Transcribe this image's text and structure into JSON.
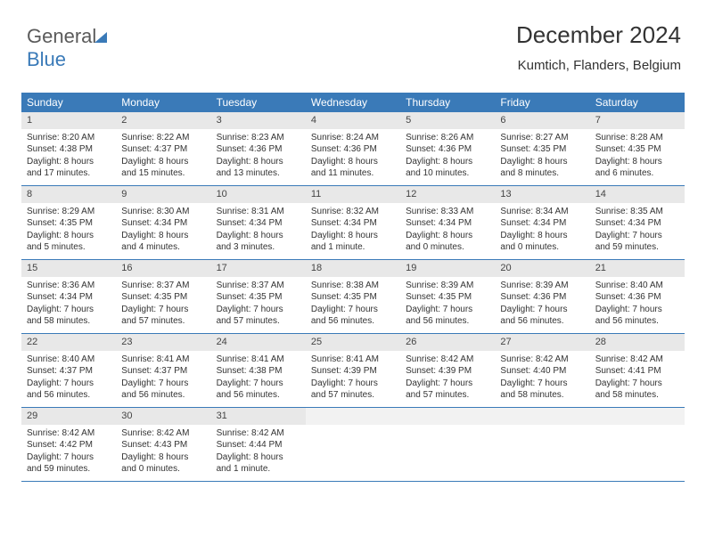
{
  "brand": {
    "part1": "General",
    "part2": "Blue"
  },
  "title": "December 2024",
  "location": "Kumtich, Flanders, Belgium",
  "colors": {
    "accent": "#3a7ab8",
    "header_bg": "#3a7ab8",
    "header_text": "#ffffff",
    "daynum_bg": "#e8e8e8",
    "empty_bg": "#f2f2f2",
    "text": "#333333",
    "rule": "#3a7ab8"
  },
  "typography": {
    "title_fontsize": 26,
    "location_fontsize": 15,
    "weekday_fontsize": 12,
    "body_fontsize": 10
  },
  "weekdays": [
    "Sunday",
    "Monday",
    "Tuesday",
    "Wednesday",
    "Thursday",
    "Friday",
    "Saturday"
  ],
  "weeks": [
    [
      {
        "n": "1",
        "sr": "Sunrise: 8:20 AM",
        "ss": "Sunset: 4:38 PM",
        "d1": "Daylight: 8 hours",
        "d2": "and 17 minutes."
      },
      {
        "n": "2",
        "sr": "Sunrise: 8:22 AM",
        "ss": "Sunset: 4:37 PM",
        "d1": "Daylight: 8 hours",
        "d2": "and 15 minutes."
      },
      {
        "n": "3",
        "sr": "Sunrise: 8:23 AM",
        "ss": "Sunset: 4:36 PM",
        "d1": "Daylight: 8 hours",
        "d2": "and 13 minutes."
      },
      {
        "n": "4",
        "sr": "Sunrise: 8:24 AM",
        "ss": "Sunset: 4:36 PM",
        "d1": "Daylight: 8 hours",
        "d2": "and 11 minutes."
      },
      {
        "n": "5",
        "sr": "Sunrise: 8:26 AM",
        "ss": "Sunset: 4:36 PM",
        "d1": "Daylight: 8 hours",
        "d2": "and 10 minutes."
      },
      {
        "n": "6",
        "sr": "Sunrise: 8:27 AM",
        "ss": "Sunset: 4:35 PM",
        "d1": "Daylight: 8 hours",
        "d2": "and 8 minutes."
      },
      {
        "n": "7",
        "sr": "Sunrise: 8:28 AM",
        "ss": "Sunset: 4:35 PM",
        "d1": "Daylight: 8 hours",
        "d2": "and 6 minutes."
      }
    ],
    [
      {
        "n": "8",
        "sr": "Sunrise: 8:29 AM",
        "ss": "Sunset: 4:35 PM",
        "d1": "Daylight: 8 hours",
        "d2": "and 5 minutes."
      },
      {
        "n": "9",
        "sr": "Sunrise: 8:30 AM",
        "ss": "Sunset: 4:34 PM",
        "d1": "Daylight: 8 hours",
        "d2": "and 4 minutes."
      },
      {
        "n": "10",
        "sr": "Sunrise: 8:31 AM",
        "ss": "Sunset: 4:34 PM",
        "d1": "Daylight: 8 hours",
        "d2": "and 3 minutes."
      },
      {
        "n": "11",
        "sr": "Sunrise: 8:32 AM",
        "ss": "Sunset: 4:34 PM",
        "d1": "Daylight: 8 hours",
        "d2": "and 1 minute."
      },
      {
        "n": "12",
        "sr": "Sunrise: 8:33 AM",
        "ss": "Sunset: 4:34 PM",
        "d1": "Daylight: 8 hours",
        "d2": "and 0 minutes."
      },
      {
        "n": "13",
        "sr": "Sunrise: 8:34 AM",
        "ss": "Sunset: 4:34 PM",
        "d1": "Daylight: 8 hours",
        "d2": "and 0 minutes."
      },
      {
        "n": "14",
        "sr": "Sunrise: 8:35 AM",
        "ss": "Sunset: 4:34 PM",
        "d1": "Daylight: 7 hours",
        "d2": "and 59 minutes."
      }
    ],
    [
      {
        "n": "15",
        "sr": "Sunrise: 8:36 AM",
        "ss": "Sunset: 4:34 PM",
        "d1": "Daylight: 7 hours",
        "d2": "and 58 minutes."
      },
      {
        "n": "16",
        "sr": "Sunrise: 8:37 AM",
        "ss": "Sunset: 4:35 PM",
        "d1": "Daylight: 7 hours",
        "d2": "and 57 minutes."
      },
      {
        "n": "17",
        "sr": "Sunrise: 8:37 AM",
        "ss": "Sunset: 4:35 PM",
        "d1": "Daylight: 7 hours",
        "d2": "and 57 minutes."
      },
      {
        "n": "18",
        "sr": "Sunrise: 8:38 AM",
        "ss": "Sunset: 4:35 PM",
        "d1": "Daylight: 7 hours",
        "d2": "and 56 minutes."
      },
      {
        "n": "19",
        "sr": "Sunrise: 8:39 AM",
        "ss": "Sunset: 4:35 PM",
        "d1": "Daylight: 7 hours",
        "d2": "and 56 minutes."
      },
      {
        "n": "20",
        "sr": "Sunrise: 8:39 AM",
        "ss": "Sunset: 4:36 PM",
        "d1": "Daylight: 7 hours",
        "d2": "and 56 minutes."
      },
      {
        "n": "21",
        "sr": "Sunrise: 8:40 AM",
        "ss": "Sunset: 4:36 PM",
        "d1": "Daylight: 7 hours",
        "d2": "and 56 minutes."
      }
    ],
    [
      {
        "n": "22",
        "sr": "Sunrise: 8:40 AM",
        "ss": "Sunset: 4:37 PM",
        "d1": "Daylight: 7 hours",
        "d2": "and 56 minutes."
      },
      {
        "n": "23",
        "sr": "Sunrise: 8:41 AM",
        "ss": "Sunset: 4:37 PM",
        "d1": "Daylight: 7 hours",
        "d2": "and 56 minutes."
      },
      {
        "n": "24",
        "sr": "Sunrise: 8:41 AM",
        "ss": "Sunset: 4:38 PM",
        "d1": "Daylight: 7 hours",
        "d2": "and 56 minutes."
      },
      {
        "n": "25",
        "sr": "Sunrise: 8:41 AM",
        "ss": "Sunset: 4:39 PM",
        "d1": "Daylight: 7 hours",
        "d2": "and 57 minutes."
      },
      {
        "n": "26",
        "sr": "Sunrise: 8:42 AM",
        "ss": "Sunset: 4:39 PM",
        "d1": "Daylight: 7 hours",
        "d2": "and 57 minutes."
      },
      {
        "n": "27",
        "sr": "Sunrise: 8:42 AM",
        "ss": "Sunset: 4:40 PM",
        "d1": "Daylight: 7 hours",
        "d2": "and 58 minutes."
      },
      {
        "n": "28",
        "sr": "Sunrise: 8:42 AM",
        "ss": "Sunset: 4:41 PM",
        "d1": "Daylight: 7 hours",
        "d2": "and 58 minutes."
      }
    ],
    [
      {
        "n": "29",
        "sr": "Sunrise: 8:42 AM",
        "ss": "Sunset: 4:42 PM",
        "d1": "Daylight: 7 hours",
        "d2": "and 59 minutes."
      },
      {
        "n": "30",
        "sr": "Sunrise: 8:42 AM",
        "ss": "Sunset: 4:43 PM",
        "d1": "Daylight: 8 hours",
        "d2": "and 0 minutes."
      },
      {
        "n": "31",
        "sr": "Sunrise: 8:42 AM",
        "ss": "Sunset: 4:44 PM",
        "d1": "Daylight: 8 hours",
        "d2": "and 1 minute."
      },
      {
        "empty": true
      },
      {
        "empty": true
      },
      {
        "empty": true
      },
      {
        "empty": true
      }
    ]
  ]
}
